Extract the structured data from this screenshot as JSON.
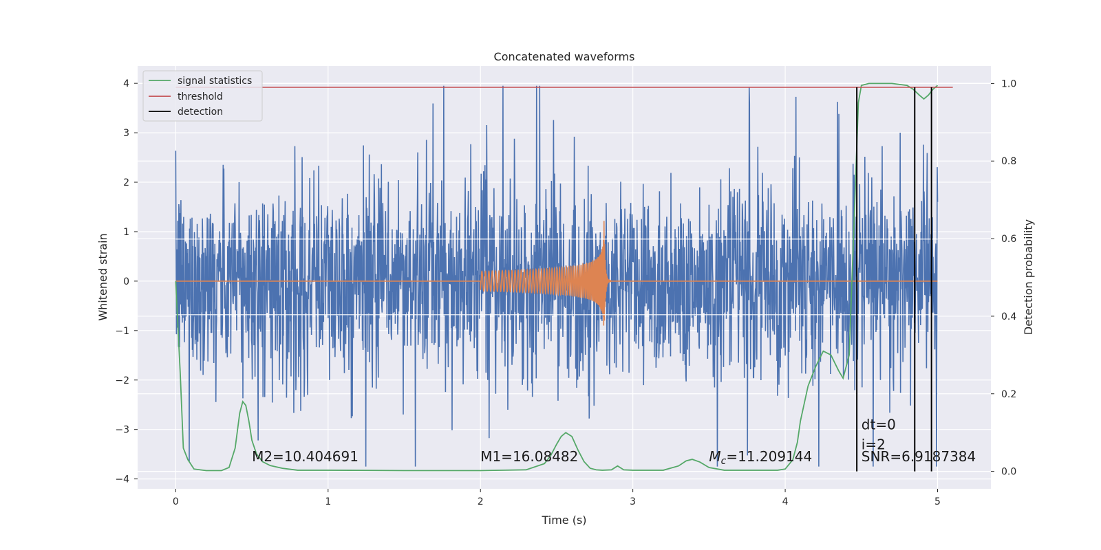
{
  "chart_data": {
    "type": "line",
    "title": "Concatenated waveforms",
    "xlabel": "Time (s)",
    "ylabel": "Whitened strain",
    "ylabel_right": "Detection probability",
    "xlim": [
      -0.25,
      5.35
    ],
    "ylim": [
      -4.2,
      4.35
    ],
    "ylim_right": [
      -0.045,
      1.045
    ],
    "x_ticks": [
      0,
      1,
      2,
      3,
      4,
      5
    ],
    "y_ticks": [
      -4,
      -3,
      -2,
      -1,
      0,
      1,
      2,
      3,
      4
    ],
    "y_ticks_right": [
      0.0,
      0.2,
      0.4,
      0.6,
      0.8,
      1.0
    ],
    "x_tick_labels": [
      "0",
      "1",
      "2",
      "3",
      "4",
      "5"
    ],
    "y_tick_labels": [
      "−4",
      "−3",
      "−2",
      "−1",
      "0",
      "1",
      "2",
      "3",
      "4"
    ],
    "y_tick_labels_right": [
      "0.0",
      "0.2",
      "0.4",
      "0.6",
      "0.8",
      "1.0"
    ],
    "grid": true,
    "legend_position": "top-left",
    "colors": {
      "strain": "#4c72b0",
      "template": "#dd8452",
      "signal_statistics": "#55a868",
      "threshold": "#c44e52",
      "detection": "#000000",
      "plot_background": "#eaeaf2",
      "grid": "#ffffff"
    },
    "series": [
      {
        "name": "signal statistics",
        "axis": "right",
        "x": [
          0.0,
          0.03,
          0.05,
          0.08,
          0.12,
          0.2,
          0.3,
          0.35,
          0.39,
          0.42,
          0.44,
          0.46,
          0.48,
          0.5,
          0.53,
          0.57,
          0.62,
          0.7,
          0.8,
          1.0,
          1.5,
          2.0,
          2.3,
          2.42,
          2.46,
          2.5,
          2.53,
          2.56,
          2.6,
          2.64,
          2.68,
          2.72,
          2.76,
          2.8,
          2.86,
          2.9,
          2.94,
          3.0,
          3.2,
          3.3,
          3.35,
          3.39,
          3.44,
          3.5,
          3.6,
          3.8,
          3.95,
          4.0,
          4.05,
          4.08,
          4.1,
          4.15,
          4.2,
          4.25,
          4.3,
          4.35,
          4.38,
          4.42,
          4.45,
          4.48,
          4.5,
          4.55,
          4.6,
          4.7,
          4.8,
          4.84,
          4.88,
          4.91,
          4.94,
          4.97,
          5.0
        ],
        "values": [
          0.49,
          0.25,
          0.06,
          0.03,
          0.006,
          0.002,
          0.002,
          0.01,
          0.06,
          0.15,
          0.18,
          0.17,
          0.13,
          0.08,
          0.045,
          0.025,
          0.015,
          0.008,
          0.003,
          0.003,
          0.002,
          0.002,
          0.004,
          0.02,
          0.04,
          0.07,
          0.09,
          0.1,
          0.09,
          0.055,
          0.025,
          0.008,
          0.004,
          0.003,
          0.004,
          0.014,
          0.004,
          0.003,
          0.003,
          0.014,
          0.027,
          0.031,
          0.024,
          0.01,
          0.003,
          0.003,
          0.003,
          0.006,
          0.03,
          0.075,
          0.13,
          0.22,
          0.27,
          0.31,
          0.3,
          0.26,
          0.24,
          0.3,
          0.62,
          0.95,
          0.995,
          1.0,
          1.0,
          1.0,
          0.995,
          0.985,
          0.97,
          0.96,
          0.97,
          0.985,
          0.995
        ]
      },
      {
        "name": "threshold",
        "axis": "right",
        "x": [
          0.0,
          5.1
        ],
        "values": [
          0.99,
          0.99
        ]
      },
      {
        "name": "detection",
        "axis": "right",
        "x_positions": [
          4.47,
          4.85,
          4.96
        ],
        "range": [
          0.0,
          0.99
        ]
      }
    ],
    "noise_series": {
      "x_range": [
        0.0,
        5.0
      ],
      "approx_range": [
        -3.75,
        3.95
      ]
    },
    "waveform_series": {
      "x_range": [
        2.0,
        2.82
      ],
      "peak_amplitude": 1.4
    },
    "reference_lines_y": [
      0.85,
      -0.68
    ],
    "annotations": [
      {
        "text": "M2=10.404691",
        "x": 0.5,
        "y": -3.55
      },
      {
        "text": "M1=16.08482",
        "x": 2.0,
        "y": -3.55
      },
      {
        "text_prefix": "M",
        "text_sub": "c",
        "text_suffix": "=11.209144",
        "x": 3.5,
        "y": -3.55
      },
      {
        "text": "dt=0",
        "x": 4.5,
        "y": -2.9
      },
      {
        "text": "i=2",
        "x": 4.5,
        "y": -3.3
      },
      {
        "text": "SNR=6.9187384",
        "x": 4.5,
        "y": -3.55
      }
    ]
  }
}
